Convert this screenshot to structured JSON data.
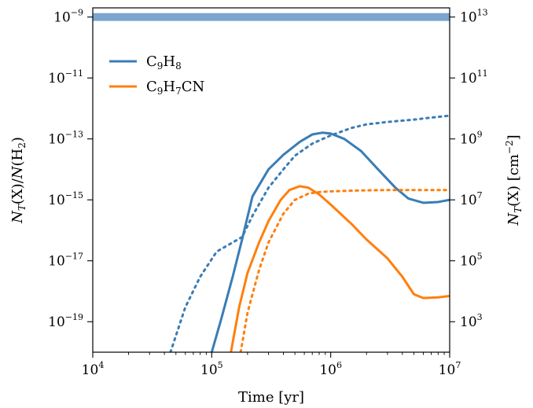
{
  "chart_data": {
    "type": "line",
    "xlabel": "Time [yr]",
    "ylabel_left": "N_T(X)/N(H_2)",
    "ylabel_right": "N_T(X) [cm^-2]",
    "xscale": "log",
    "yscale": "log",
    "xlim": [
      10000,
      10000000
    ],
    "ylim": [
      1e-20,
      2e-09
    ],
    "x_ticks": [
      {
        "value": 10000,
        "base": "10",
        "exp": "4"
      },
      {
        "value": 100000,
        "base": "10",
        "exp": "5"
      },
      {
        "value": 1000000,
        "base": "10",
        "exp": "6"
      },
      {
        "value": 10000000,
        "base": "10",
        "exp": "7"
      }
    ],
    "y_ticks_left": [
      {
        "value": 1e-09,
        "base": "10",
        "exp": "−9"
      },
      {
        "value": 1e-11,
        "base": "10",
        "exp": "−11"
      },
      {
        "value": 1e-13,
        "base": "10",
        "exp": "−13"
      },
      {
        "value": 1e-15,
        "base": "10",
        "exp": "−15"
      },
      {
        "value": 1e-17,
        "base": "10",
        "exp": "−17"
      },
      {
        "value": 1e-19,
        "base": "10",
        "exp": "−19"
      }
    ],
    "y_ticks_right": [
      {
        "value": 1e-09,
        "base": "10",
        "exp": "13"
      },
      {
        "value": 1e-11,
        "base": "10",
        "exp": "11"
      },
      {
        "value": 1e-13,
        "base": "10",
        "exp": "9"
      },
      {
        "value": 1e-15,
        "base": "10",
        "exp": "7"
      },
      {
        "value": 1e-17,
        "base": "10",
        "exp": "5"
      },
      {
        "value": 1e-19,
        "base": "10",
        "exp": "3"
      }
    ],
    "reference_band": {
      "y": 1e-09,
      "color": "#7aa6cf"
    },
    "legend": {
      "placement": "upper-left",
      "entries": [
        {
          "label": "C9H8",
          "color": "#3a7db5"
        },
        {
          "label": "C9H7CN",
          "color": "#ff7f0e"
        }
      ]
    },
    "series": [
      {
        "style": "solid",
        "color": "#3a7db5",
        "points": [
          [
            100000,
            1e-20
          ],
          [
            120000,
            1.2e-19
          ],
          [
            150000,
            3e-18
          ],
          [
            180000,
            5e-17
          ],
          [
            220000,
            1.3e-15
          ],
          [
            300000,
            1e-14
          ],
          [
            400000,
            3e-14
          ],
          [
            550000,
            8e-14
          ],
          [
            700000,
            1.4e-13
          ],
          [
            850000,
            1.6e-13
          ],
          [
            1000000,
            1.5e-13
          ],
          [
            1300000,
            1e-13
          ],
          [
            1800000,
            4e-14
          ],
          [
            2500000,
            1e-14
          ],
          [
            3500000,
            2.5e-15
          ],
          [
            4500000,
            1.1e-15
          ],
          [
            6000000,
            8e-16
          ],
          [
            8000000,
            8.5e-16
          ],
          [
            10000000,
            1e-15
          ]
        ]
      },
      {
        "style": "dotted",
        "color": "#3a7db5",
        "points": [
          [
            45000,
            1e-20
          ],
          [
            60000,
            3e-19
          ],
          [
            80000,
            3e-18
          ],
          [
            110000,
            2e-17
          ],
          [
            150000,
            4e-17
          ],
          [
            180000,
            6e-17
          ],
          [
            220000,
            3e-16
          ],
          [
            300000,
            2.5e-15
          ],
          [
            400000,
            1e-14
          ],
          [
            500000,
            2.8e-14
          ],
          [
            700000,
            7e-14
          ],
          [
            1000000,
            1.3e-13
          ],
          [
            1500000,
            2.3e-13
          ],
          [
            2000000,
            3e-13
          ],
          [
            3000000,
            3.6e-13
          ],
          [
            5000000,
            4.3e-13
          ],
          [
            7000000,
            5e-13
          ],
          [
            10000000,
            5.8e-13
          ]
        ]
      },
      {
        "style": "solid",
        "color": "#ff7f0e",
        "points": [
          [
            145000,
            1e-20
          ],
          [
            170000,
            3e-19
          ],
          [
            200000,
            4e-18
          ],
          [
            250000,
            4e-17
          ],
          [
            300000,
            2e-16
          ],
          [
            380000,
            1e-15
          ],
          [
            450000,
            2.1e-15
          ],
          [
            550000,
            2.8e-15
          ],
          [
            650000,
            2.5e-15
          ],
          [
            800000,
            1.5e-15
          ],
          [
            1000000,
            7e-16
          ],
          [
            1500000,
            1.6e-16
          ],
          [
            2000000,
            5e-17
          ],
          [
            3000000,
            1.2e-17
          ],
          [
            4000000,
            3e-18
          ],
          [
            5000000,
            8e-19
          ],
          [
            6000000,
            6e-19
          ],
          [
            8000000,
            6.3e-19
          ],
          [
            10000000,
            7e-19
          ]
        ]
      },
      {
        "style": "dotted",
        "color": "#ff7f0e",
        "points": [
          [
            175000,
            1e-20
          ],
          [
            200000,
            2e-19
          ],
          [
            250000,
            5e-18
          ],
          [
            300000,
            4e-17
          ],
          [
            400000,
            3.5e-16
          ],
          [
            500000,
            1e-15
          ],
          [
            650000,
            1.6e-15
          ],
          [
            800000,
            1.8e-15
          ],
          [
            1000000,
            1.9e-15
          ],
          [
            1500000,
            2e-15
          ],
          [
            2000000,
            2.05e-15
          ],
          [
            3000000,
            2.1e-15
          ],
          [
            5000000,
            2.1e-15
          ],
          [
            7000000,
            2.1e-15
          ],
          [
            10000000,
            2.1e-15
          ]
        ]
      }
    ]
  }
}
